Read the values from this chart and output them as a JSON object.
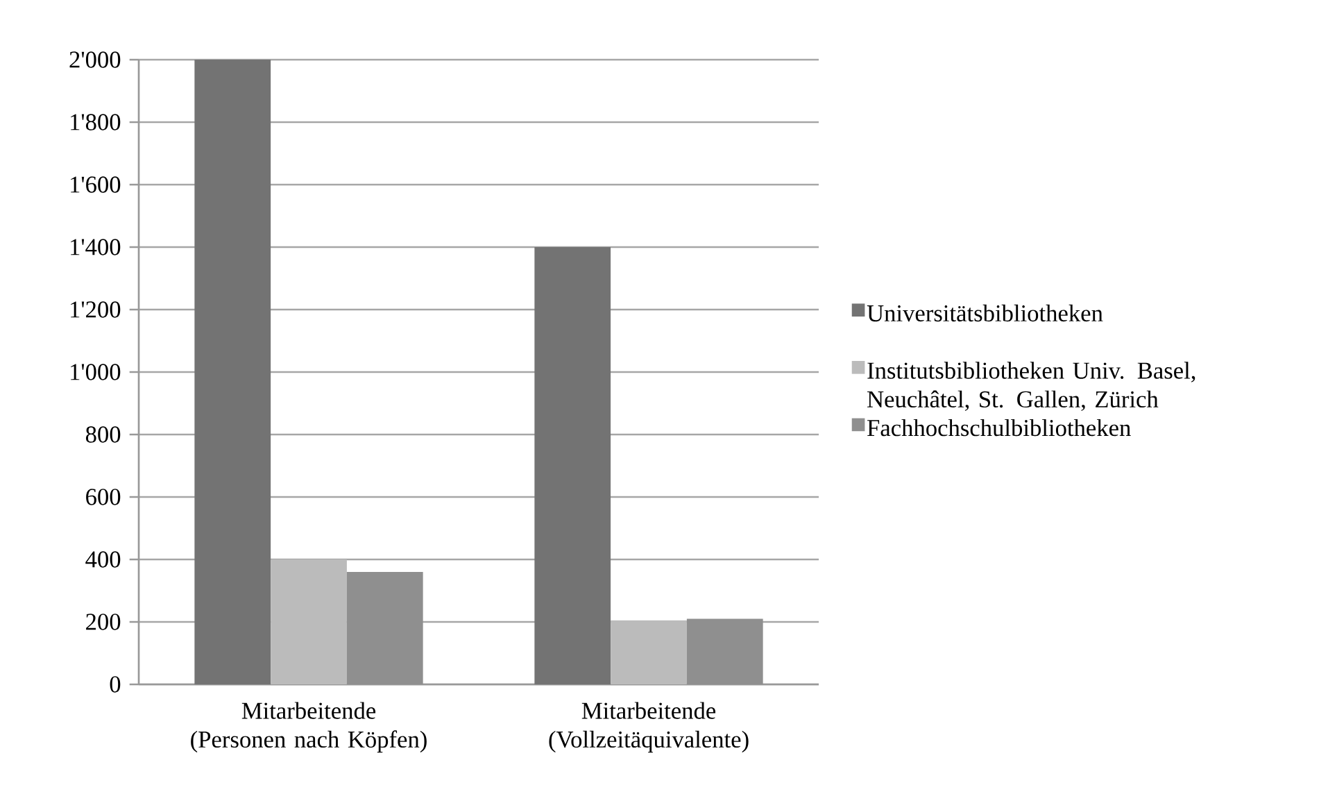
{
  "chart_data": {
    "type": "bar",
    "categories": [
      "Mitarbeitende (Personen nach Köpfen)",
      "Mitarbeitende (Vollzeitäquivalente)"
    ],
    "series": [
      {
        "name": "Universitätsbibliotheken",
        "color": "#737373",
        "values": [
          2000,
          1400
        ]
      },
      {
        "name": "Institutsbibliotheken Univ. Basel, Neuchâtel, St. Gallen, Zürich",
        "color": "#bbbbbb",
        "values": [
          400,
          205
        ]
      },
      {
        "name": "Fachhochschulbibliotheken",
        "color": "#8f8f8f",
        "values": [
          360,
          210
        ]
      }
    ],
    "ylim": [
      0,
      2000
    ],
    "yticks": [
      0,
      {
        "value": 200,
        "label": "200"
      },
      400,
      600,
      800,
      {
        "value": 1000,
        "label": "1'000"
      },
      {
        "value": 1200,
        "label": "1'200"
      },
      {
        "value": 1400,
        "label": "1'400"
      },
      {
        "value": 1600,
        "label": "1'600"
      },
      {
        "value": 1800,
        "label": "1'800"
      },
      {
        "value": 2000,
        "label": "2'000"
      }
    ],
    "grid": "y",
    "legend": "right"
  }
}
